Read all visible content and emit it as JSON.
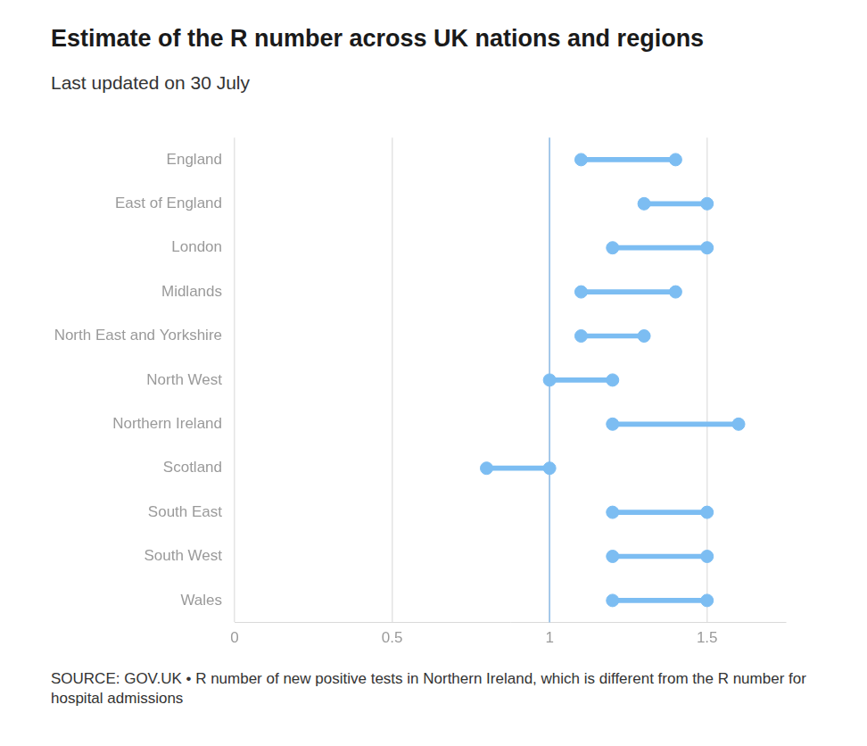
{
  "chart_data": {
    "type": "dumbbell",
    "orientation": "horizontal",
    "title": "Estimate of the R number across UK nations and regions",
    "subtitle": "Last updated on 30 July",
    "note": "SOURCE: GOV.UK • R number of new positive tests in Northern Ireland, which is different from the R number for hospital admissions",
    "categories": [
      "England",
      "East of England",
      "London",
      "Midlands",
      "North East and Yorkshire",
      "North West",
      "Northern Ireland",
      "Scotland",
      "South East",
      "South West",
      "Wales"
    ],
    "values": [
      [
        1.1,
        1.4
      ],
      [
        1.3,
        1.5
      ],
      [
        1.2,
        1.5
      ],
      [
        1.1,
        1.4
      ],
      [
        1.1,
        1.3
      ],
      [
        1.0,
        1.2
      ],
      [
        1.2,
        1.6
      ],
      [
        0.8,
        1.0
      ],
      [
        1.2,
        1.5
      ],
      [
        1.2,
        1.5
      ],
      [
        1.2,
        1.5
      ]
    ],
    "color": "#7cbdf2",
    "reference_line": 1,
    "xlim": [
      0,
      1.75
    ],
    "xticks": [
      0,
      0.5,
      1,
      1.5
    ],
    "grid": true
  }
}
